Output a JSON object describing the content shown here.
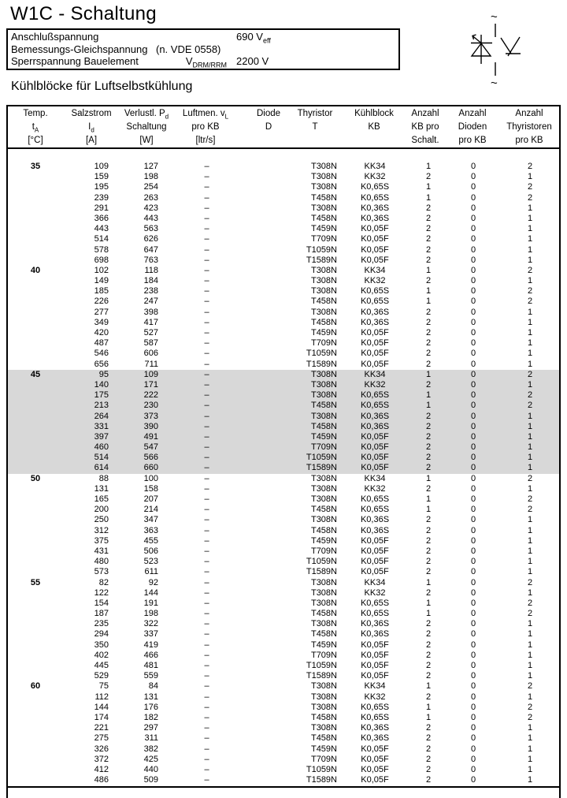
{
  "page": {
    "title": "W1C - Schaltung",
    "section_heading": "Kühlblöcke für Luftselbstkühlung"
  },
  "info_box": {
    "rows": [
      {
        "label": "Anschlußspannung",
        "note": "",
        "symbol_base": "",
        "symbol_sub": "",
        "value_base": "690 V",
        "value_sub": "eff"
      },
      {
        "label": "Bemessungs-Gleichspannung",
        "note": "(n. VDE 0558)",
        "symbol_base": "",
        "symbol_sub": "",
        "value_base": "",
        "value_sub": ""
      },
      {
        "label": "Sperrspannung  Bauelement",
        "note": "",
        "symbol_base": "V",
        "symbol_sub": "DRM/RRM",
        "value_base": "2200 V",
        "value_sub": ""
      }
    ]
  },
  "circuit_symbol": {
    "top_terminal": "~",
    "bottom_terminal": "~"
  },
  "table": {
    "headers": [
      {
        "lines": [
          [
            "Temp.",
            ""
          ],
          [
            "t",
            "A"
          ],
          [
            "[°C]",
            ""
          ]
        ]
      },
      {
        "lines": [
          [
            "Salzstrom",
            ""
          ],
          [
            "I",
            "d"
          ],
          [
            "[A]",
            ""
          ]
        ]
      },
      {
        "lines": [
          [
            "Verlustl. P",
            "d"
          ],
          [
            "Schaltung",
            ""
          ],
          [
            "[W]",
            ""
          ]
        ]
      },
      {
        "lines": [
          [
            "Luftmen. v",
            "L"
          ],
          [
            "pro KB",
            ""
          ],
          [
            "[ltr/s]",
            ""
          ]
        ]
      },
      {
        "lines": [
          [
            "Diode",
            ""
          ],
          [
            "D",
            ""
          ],
          [
            "",
            ""
          ]
        ]
      },
      {
        "lines": [
          [
            "Thyristor",
            ""
          ],
          [
            "T",
            ""
          ],
          [
            "",
            ""
          ]
        ]
      },
      {
        "lines": [
          [
            "Kühlblock",
            ""
          ],
          [
            "KB",
            ""
          ],
          [
            "",
            ""
          ]
        ]
      },
      {
        "lines": [
          [
            "Anzahl",
            ""
          ],
          [
            "KB pro",
            ""
          ],
          [
            "Schalt.",
            ""
          ]
        ]
      },
      {
        "lines": [
          [
            "Anzahl",
            ""
          ],
          [
            "Dioden",
            ""
          ],
          [
            "pro KB",
            ""
          ]
        ]
      },
      {
        "lines": [
          [
            "Anzahl",
            ""
          ],
          [
            "Thyristoren",
            ""
          ],
          [
            "pro KB",
            ""
          ]
        ]
      }
    ],
    "groups": [
      {
        "temp": "35",
        "highlighted": false,
        "rows": [
          [
            "109",
            "127",
            "–",
            "",
            "T308N",
            "KK34",
            "1",
            "0",
            "2"
          ],
          [
            "159",
            "198",
            "–",
            "",
            "T308N",
            "KK32",
            "2",
            "0",
            "1"
          ],
          [
            "195",
            "254",
            "–",
            "",
            "T308N",
            "K0,65S",
            "1",
            "0",
            "2"
          ],
          [
            "239",
            "263",
            "–",
            "",
            "T458N",
            "K0,65S",
            "1",
            "0",
            "2"
          ],
          [
            "291",
            "423",
            "–",
            "",
            "T308N",
            "K0,36S",
            "2",
            "0",
            "1"
          ],
          [
            "366",
            "443",
            "–",
            "",
            "T458N",
            "K0,36S",
            "2",
            "0",
            "1"
          ],
          [
            "443",
            "563",
            "–",
            "",
            "T459N",
            "K0,05F",
            "2",
            "0",
            "1"
          ],
          [
            "514",
            "626",
            "–",
            "",
            "T709N",
            "K0,05F",
            "2",
            "0",
            "1"
          ],
          [
            "578",
            "647",
            "–",
            "",
            "T1059N",
            "K0,05F",
            "2",
            "0",
            "1"
          ],
          [
            "698",
            "763",
            "–",
            "",
            "T1589N",
            "K0,05F",
            "2",
            "0",
            "1"
          ]
        ]
      },
      {
        "temp": "40",
        "highlighted": false,
        "rows": [
          [
            "102",
            "118",
            "–",
            "",
            "T308N",
            "KK34",
            "1",
            "0",
            "2"
          ],
          [
            "149",
            "184",
            "–",
            "",
            "T308N",
            "KK32",
            "2",
            "0",
            "1"
          ],
          [
            "185",
            "238",
            "–",
            "",
            "T308N",
            "K0,65S",
            "1",
            "0",
            "2"
          ],
          [
            "226",
            "247",
            "–",
            "",
            "T458N",
            "K0,65S",
            "1",
            "0",
            "2"
          ],
          [
            "277",
            "398",
            "–",
            "",
            "T308N",
            "K0,36S",
            "2",
            "0",
            "1"
          ],
          [
            "349",
            "417",
            "–",
            "",
            "T458N",
            "K0,36S",
            "2",
            "0",
            "1"
          ],
          [
            "420",
            "527",
            "–",
            "",
            "T459N",
            "K0,05F",
            "2",
            "0",
            "1"
          ],
          [
            "487",
            "587",
            "–",
            "",
            "T709N",
            "K0,05F",
            "2",
            "0",
            "1"
          ],
          [
            "546",
            "606",
            "–",
            "",
            "T1059N",
            "K0,05F",
            "2",
            "0",
            "1"
          ],
          [
            "656",
            "711",
            "–",
            "",
            "T1589N",
            "K0,05F",
            "2",
            "0",
            "1"
          ]
        ]
      },
      {
        "temp": "45",
        "highlighted": true,
        "rows": [
          [
            "95",
            "109",
            "–",
            "",
            "T308N",
            "KK34",
            "1",
            "0",
            "2"
          ],
          [
            "140",
            "171",
            "–",
            "",
            "T308N",
            "KK32",
            "2",
            "0",
            "1"
          ],
          [
            "175",
            "222",
            "–",
            "",
            "T308N",
            "K0,65S",
            "1",
            "0",
            "2"
          ],
          [
            "213",
            "230",
            "–",
            "",
            "T458N",
            "K0,65S",
            "1",
            "0",
            "2"
          ],
          [
            "264",
            "373",
            "–",
            "",
            "T308N",
            "K0,36S",
            "2",
            "0",
            "1"
          ],
          [
            "331",
            "390",
            "–",
            "",
            "T458N",
            "K0,36S",
            "2",
            "0",
            "1"
          ],
          [
            "397",
            "491",
            "–",
            "",
            "T459N",
            "K0,05F",
            "2",
            "0",
            "1"
          ],
          [
            "460",
            "547",
            "–",
            "",
            "T709N",
            "K0,05F",
            "2",
            "0",
            "1"
          ],
          [
            "514",
            "566",
            "–",
            "",
            "T1059N",
            "K0,05F",
            "2",
            "0",
            "1"
          ],
          [
            "614",
            "660",
            "–",
            "",
            "T1589N",
            "K0,05F",
            "2",
            "0",
            "1"
          ]
        ]
      },
      {
        "temp": "50",
        "highlighted": false,
        "rows": [
          [
            "88",
            "100",
            "–",
            "",
            "T308N",
            "KK34",
            "1",
            "0",
            "2"
          ],
          [
            "131",
            "158",
            "–",
            "",
            "T308N",
            "KK32",
            "2",
            "0",
            "1"
          ],
          [
            "165",
            "207",
            "–",
            "",
            "T308N",
            "K0,65S",
            "1",
            "0",
            "2"
          ],
          [
            "200",
            "214",
            "–",
            "",
            "T458N",
            "K0,65S",
            "1",
            "0",
            "2"
          ],
          [
            "250",
            "347",
            "–",
            "",
            "T308N",
            "K0,36S",
            "2",
            "0",
            "1"
          ],
          [
            "312",
            "363",
            "–",
            "",
            "T458N",
            "K0,36S",
            "2",
            "0",
            "1"
          ],
          [
            "375",
            "455",
            "–",
            "",
            "T459N",
            "K0,05F",
            "2",
            "0",
            "1"
          ],
          [
            "431",
            "506",
            "–",
            "",
            "T709N",
            "K0,05F",
            "2",
            "0",
            "1"
          ],
          [
            "480",
            "523",
            "–",
            "",
            "T1059N",
            "K0,05F",
            "2",
            "0",
            "1"
          ],
          [
            "573",
            "611",
            "–",
            "",
            "T1589N",
            "K0,05F",
            "2",
            "0",
            "1"
          ]
        ]
      },
      {
        "temp": "55",
        "highlighted": false,
        "rows": [
          [
            "82",
            "92",
            "–",
            "",
            "T308N",
            "KK34",
            "1",
            "0",
            "2"
          ],
          [
            "122",
            "144",
            "–",
            "",
            "T308N",
            "KK32",
            "2",
            "0",
            "1"
          ],
          [
            "154",
            "191",
            "–",
            "",
            "T308N",
            "K0,65S",
            "1",
            "0",
            "2"
          ],
          [
            "187",
            "198",
            "–",
            "",
            "T458N",
            "K0,65S",
            "1",
            "0",
            "2"
          ],
          [
            "235",
            "322",
            "–",
            "",
            "T308N",
            "K0,36S",
            "2",
            "0",
            "1"
          ],
          [
            "294",
            "337",
            "–",
            "",
            "T458N",
            "K0,36S",
            "2",
            "0",
            "1"
          ],
          [
            "350",
            "419",
            "–",
            "",
            "T459N",
            "K0,05F",
            "2",
            "0",
            "1"
          ],
          [
            "402",
            "466",
            "–",
            "",
            "T709N",
            "K0,05F",
            "2",
            "0",
            "1"
          ],
          [
            "445",
            "481",
            "–",
            "",
            "T1059N",
            "K0,05F",
            "2",
            "0",
            "1"
          ],
          [
            "529",
            "559",
            "–",
            "",
            "T1589N",
            "K0,05F",
            "2",
            "0",
            "1"
          ]
        ]
      },
      {
        "temp": "60",
        "highlighted": false,
        "rows": [
          [
            "75",
            "84",
            "–",
            "",
            "T308N",
            "KK34",
            "1",
            "0",
            "2"
          ],
          [
            "112",
            "131",
            "–",
            "",
            "T308N",
            "KK32",
            "2",
            "0",
            "1"
          ],
          [
            "144",
            "176",
            "–",
            "",
            "T308N",
            "K0,65S",
            "1",
            "0",
            "2"
          ],
          [
            "174",
            "182",
            "–",
            "",
            "T458N",
            "K0,65S",
            "1",
            "0",
            "2"
          ],
          [
            "221",
            "297",
            "–",
            "",
            "T308N",
            "K0,36S",
            "2",
            "0",
            "1"
          ],
          [
            "275",
            "311",
            "–",
            "",
            "T458N",
            "K0,36S",
            "2",
            "0",
            "1"
          ],
          [
            "326",
            "382",
            "–",
            "",
            "T459N",
            "K0,05F",
            "2",
            "0",
            "1"
          ],
          [
            "372",
            "425",
            "–",
            "",
            "T709N",
            "K0,05F",
            "2",
            "0",
            "1"
          ],
          [
            "412",
            "440",
            "–",
            "",
            "T1059N",
            "K0,05F",
            "2",
            "0",
            "1"
          ],
          [
            "486",
            "509",
            "–",
            "",
            "T1589N",
            "K0,05F",
            "2",
            "0",
            "1"
          ]
        ]
      }
    ]
  },
  "colors": {
    "highlight": "#d8d8d8",
    "ink": "#000000",
    "paper": "#ffffff"
  }
}
